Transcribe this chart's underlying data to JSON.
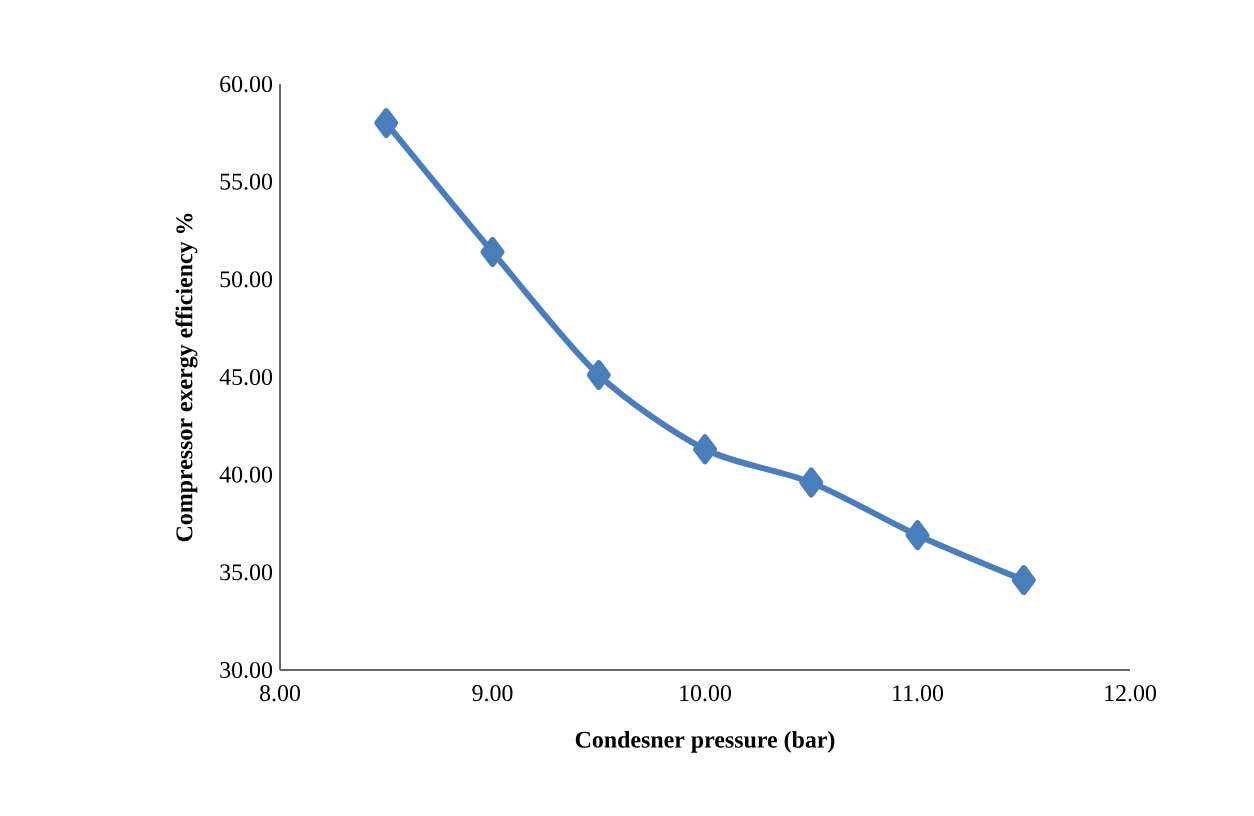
{
  "chart_data": {
    "type": "line",
    "xlabel": "Condesner  pressure (bar)",
    "ylabel": "Compressor exergy efficiency %",
    "x": [
      8.5,
      9.0,
      9.5,
      10.0,
      10.5,
      11.0,
      11.5
    ],
    "series": [
      {
        "color": "#4a7ebb",
        "values": [
          58.0,
          51.4,
          45.1,
          41.3,
          39.6,
          36.9,
          34.6
        ]
      }
    ],
    "xlim": [
      8,
      12
    ],
    "ylim": [
      30,
      60
    ],
    "xticks": [
      {
        "value": 8,
        "label": "8.00"
      },
      {
        "value": 9,
        "label": "9.00"
      },
      {
        "value": 10,
        "label": "10.00"
      },
      {
        "value": 11,
        "label": "11.00"
      },
      {
        "value": 12,
        "label": "12.00"
      }
    ],
    "yticks": [
      {
        "value": 30,
        "label": "30.00"
      },
      {
        "value": 35,
        "label": "35.00"
      },
      {
        "value": 40,
        "label": "40.00"
      },
      {
        "value": 45,
        "label": "45.00"
      },
      {
        "value": 50,
        "label": "50.00"
      },
      {
        "value": 55,
        "label": "55.00"
      },
      {
        "value": 60,
        "label": "60.00"
      }
    ],
    "marker": "diamond",
    "line_style": "solid"
  }
}
